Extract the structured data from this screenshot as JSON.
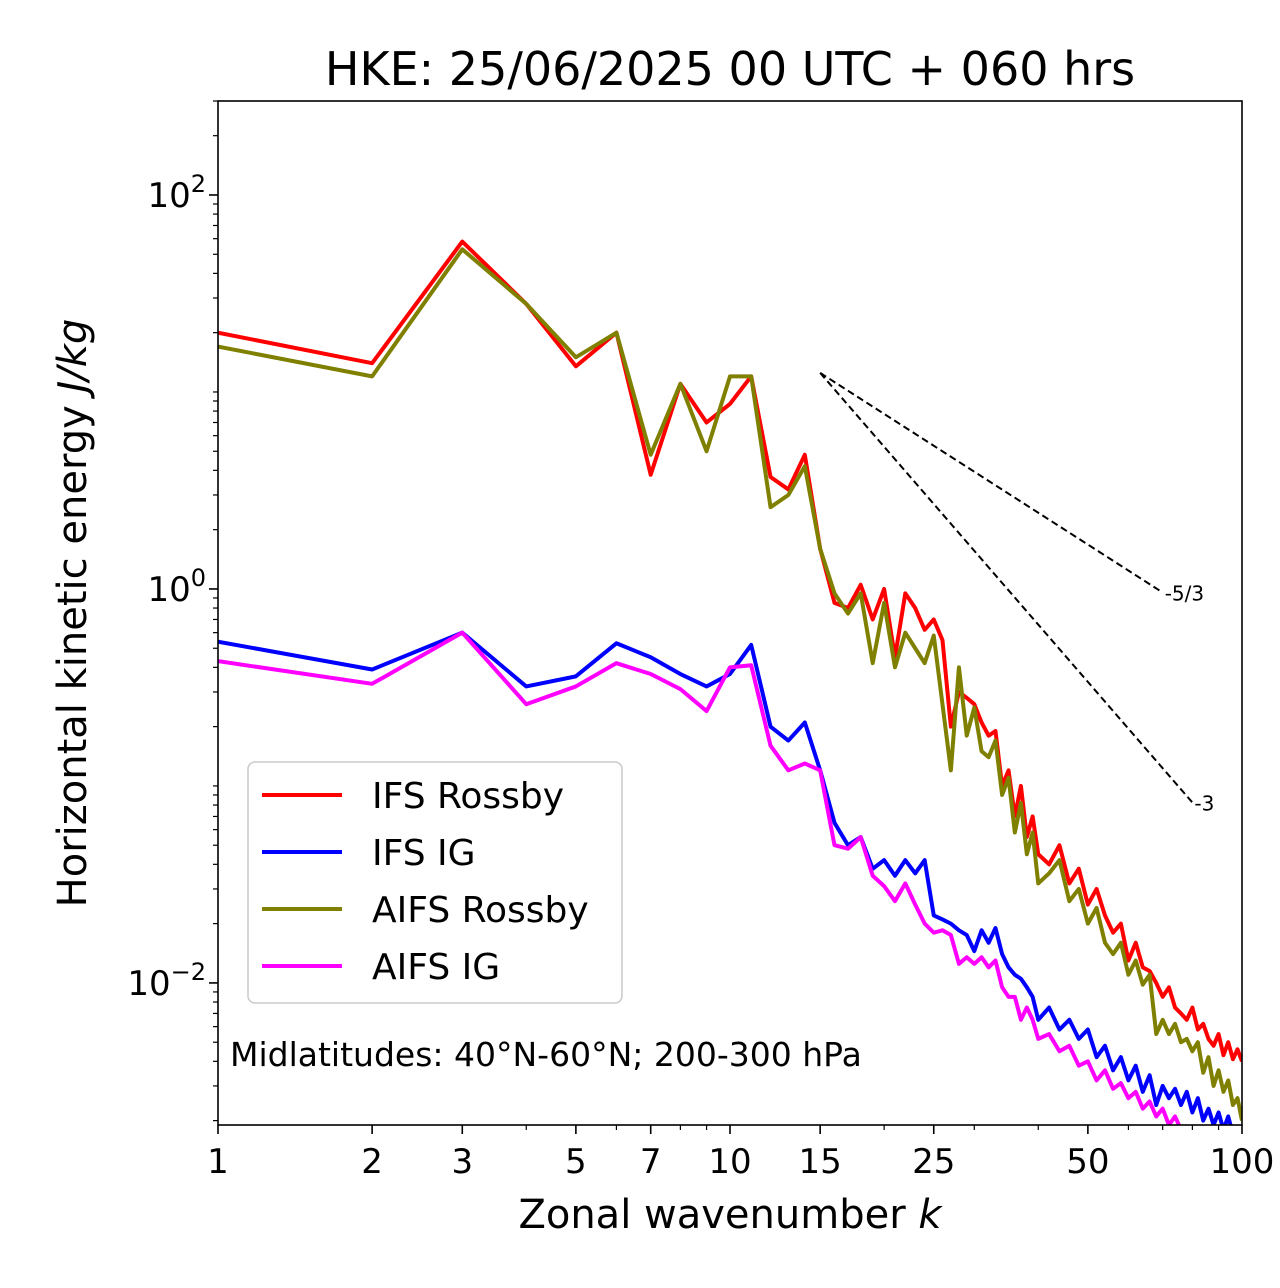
{
  "chart_data": {
    "type": "line",
    "title": "HKE: 25/06/2025 00 UTC + 060 hrs",
    "xlabel": "Zonal wavenumber",
    "xlabel_var": "k",
    "ylabel": "Horizontal kinetic energy",
    "ylabel_unit": "J/kg",
    "xscale": "log",
    "yscale": "log",
    "xlim": [
      1,
      100
    ],
    "ylim": [
      0.0019,
      300
    ],
    "xticks": [
      1,
      2,
      3,
      5,
      7,
      10,
      15,
      25,
      50,
      100
    ],
    "xtick_labels": [
      "1",
      "2",
      "3",
      "5",
      "7",
      "10",
      "15",
      "25",
      "50",
      "100"
    ],
    "yticks": [
      {
        "value": 100,
        "base": "10",
        "exp": "2"
      },
      {
        "value": 1,
        "base": "10",
        "exp": "0"
      },
      {
        "value": 0.01,
        "base": "10",
        "exp": "−2"
      }
    ],
    "grid": false,
    "legend_placement": "lower-left",
    "annotation": "Midlatitudes: 40°N-60°N; 200-300 hPa",
    "reference_slopes": [
      {
        "label": "-5/3",
        "exponent": -1.6667,
        "x_start": 15,
        "x_end": 70,
        "y_start": 12.5
      },
      {
        "label": "-3",
        "exponent": -3,
        "x_start": 15,
        "x_end": 80,
        "y_start": 12.5
      }
    ],
    "series": [
      {
        "name": "IFS Rossby",
        "color": "#ff0000",
        "x": [
          1,
          2,
          3,
          4,
          5,
          6,
          7,
          8,
          9,
          10,
          11,
          12,
          13,
          14,
          15,
          16,
          17,
          18,
          19,
          20,
          21,
          22,
          23,
          24,
          25,
          26,
          27,
          28,
          29,
          30,
          31,
          32,
          33,
          34,
          35,
          36,
          37,
          38,
          39,
          40,
          42,
          44,
          46,
          48,
          50,
          52,
          54,
          56,
          58,
          60,
          62,
          64,
          66,
          68,
          70,
          72,
          74,
          76,
          78,
          80,
          82,
          84,
          86,
          88,
          90,
          92,
          94,
          96,
          98,
          100
        ],
        "y": [
          20,
          14,
          58,
          28,
          13.5,
          20,
          3.8,
          11,
          7,
          8.7,
          12,
          3.7,
          3.2,
          4.8,
          1.6,
          0.85,
          0.8,
          1.05,
          0.7,
          1.0,
          0.45,
          0.95,
          0.8,
          0.62,
          0.7,
          0.55,
          0.2,
          0.3,
          0.28,
          0.26,
          0.21,
          0.18,
          0.19,
          0.1,
          0.12,
          0.07,
          0.1,
          0.055,
          0.07,
          0.045,
          0.04,
          0.05,
          0.032,
          0.038,
          0.025,
          0.03,
          0.022,
          0.018,
          0.02,
          0.013,
          0.016,
          0.012,
          0.0115,
          0.01,
          0.0085,
          0.0095,
          0.0075,
          0.007,
          0.0065,
          0.0075,
          0.0058,
          0.0062,
          0.0052,
          0.0048,
          0.0055,
          0.0043,
          0.005,
          0.0041,
          0.0046,
          0.004
        ]
      },
      {
        "name": "IFS IG",
        "color": "#0000ff",
        "x": [
          1,
          2,
          3,
          4,
          5,
          6,
          7,
          8,
          9,
          10,
          11,
          12,
          13,
          14,
          15,
          16,
          17,
          18,
          19,
          20,
          21,
          22,
          23,
          24,
          25,
          26,
          27,
          28,
          29,
          30,
          31,
          32,
          33,
          34,
          35,
          36,
          37,
          38,
          39,
          40,
          42,
          44,
          46,
          48,
          50,
          52,
          54,
          56,
          58,
          60,
          62,
          64,
          66,
          68,
          70,
          72,
          74,
          76,
          78,
          80,
          82,
          84,
          86,
          88,
          90,
          92,
          94,
          96,
          98,
          100
        ],
        "y": [
          0.54,
          0.39,
          0.6,
          0.32,
          0.36,
          0.53,
          0.45,
          0.37,
          0.32,
          0.37,
          0.52,
          0.2,
          0.17,
          0.21,
          0.12,
          0.065,
          0.05,
          0.055,
          0.038,
          0.042,
          0.035,
          0.042,
          0.036,
          0.042,
          0.022,
          0.021,
          0.02,
          0.0185,
          0.0175,
          0.0145,
          0.0185,
          0.016,
          0.019,
          0.014,
          0.012,
          0.011,
          0.0105,
          0.0095,
          0.0085,
          0.0065,
          0.0075,
          0.0058,
          0.0065,
          0.0052,
          0.0058,
          0.0042,
          0.0048,
          0.0036,
          0.0042,
          0.0032,
          0.0038,
          0.0028,
          0.0034,
          0.0024,
          0.003,
          0.0026,
          0.0029,
          0.0024,
          0.0028,
          0.0022,
          0.0026,
          0.002,
          0.0023,
          0.0019,
          0.0022,
          0.0018,
          0.0021,
          0.0017,
          0.0018,
          0.0016
        ]
      },
      {
        "name": "AIFS Rossby",
        "color": "#808000",
        "x": [
          1,
          2,
          3,
          4,
          5,
          6,
          7,
          8,
          9,
          10,
          11,
          12,
          13,
          14,
          15,
          16,
          17,
          18,
          19,
          20,
          21,
          22,
          23,
          24,
          25,
          26,
          27,
          28,
          29,
          30,
          31,
          32,
          33,
          34,
          35,
          36,
          37,
          38,
          39,
          40,
          42,
          44,
          46,
          48,
          50,
          52,
          54,
          56,
          58,
          60,
          62,
          64,
          66,
          68,
          70,
          72,
          74,
          76,
          78,
          80,
          82,
          84,
          86,
          88,
          90,
          92,
          94,
          96,
          98,
          100
        ],
        "y": [
          17,
          12,
          53,
          28,
          15,
          20,
          4.8,
          11,
          5,
          12,
          12,
          2.6,
          3,
          4.2,
          1.6,
          0.95,
          0.75,
          0.95,
          0.42,
          0.85,
          0.4,
          0.6,
          0.5,
          0.42,
          0.58,
          0.26,
          0.12,
          0.4,
          0.18,
          0.25,
          0.15,
          0.14,
          0.17,
          0.09,
          0.11,
          0.058,
          0.082,
          0.045,
          0.058,
          0.032,
          0.036,
          0.042,
          0.026,
          0.03,
          0.02,
          0.024,
          0.016,
          0.014,
          0.016,
          0.011,
          0.013,
          0.0098,
          0.011,
          0.0055,
          0.0065,
          0.0055,
          0.0062,
          0.005,
          0.0052,
          0.0045,
          0.005,
          0.0035,
          0.0042,
          0.003,
          0.0036,
          0.0028,
          0.0032,
          0.0024,
          0.0026,
          0.002
        ]
      },
      {
        "name": "AIFS IG",
        "color": "#ff00ff",
        "x": [
          1,
          2,
          3,
          4,
          5,
          6,
          7,
          8,
          9,
          10,
          11,
          12,
          13,
          14,
          15,
          16,
          17,
          18,
          19,
          20,
          21,
          22,
          23,
          24,
          25,
          26,
          27,
          28,
          29,
          30,
          31,
          32,
          33,
          34,
          35,
          36,
          37,
          38,
          39,
          40,
          42,
          44,
          46,
          48,
          50,
          52,
          54,
          56,
          58,
          60,
          62,
          64,
          66,
          68,
          70,
          72,
          74,
          76,
          78
        ],
        "y": [
          0.43,
          0.33,
          0.6,
          0.26,
          0.32,
          0.42,
          0.37,
          0.31,
          0.24,
          0.4,
          0.41,
          0.16,
          0.12,
          0.13,
          0.12,
          0.05,
          0.048,
          0.055,
          0.035,
          0.031,
          0.026,
          0.032,
          0.025,
          0.02,
          0.018,
          0.0185,
          0.0175,
          0.0125,
          0.0135,
          0.0125,
          0.0135,
          0.012,
          0.013,
          0.0095,
          0.0085,
          0.0085,
          0.0065,
          0.0075,
          0.0065,
          0.0052,
          0.0055,
          0.0045,
          0.0048,
          0.0038,
          0.004,
          0.0032,
          0.0036,
          0.0029,
          0.0031,
          0.0026,
          0.0028,
          0.0023,
          0.0025,
          0.0021,
          0.0023,
          0.0019,
          0.0021,
          0.0018,
          0.0017
        ]
      }
    ]
  }
}
